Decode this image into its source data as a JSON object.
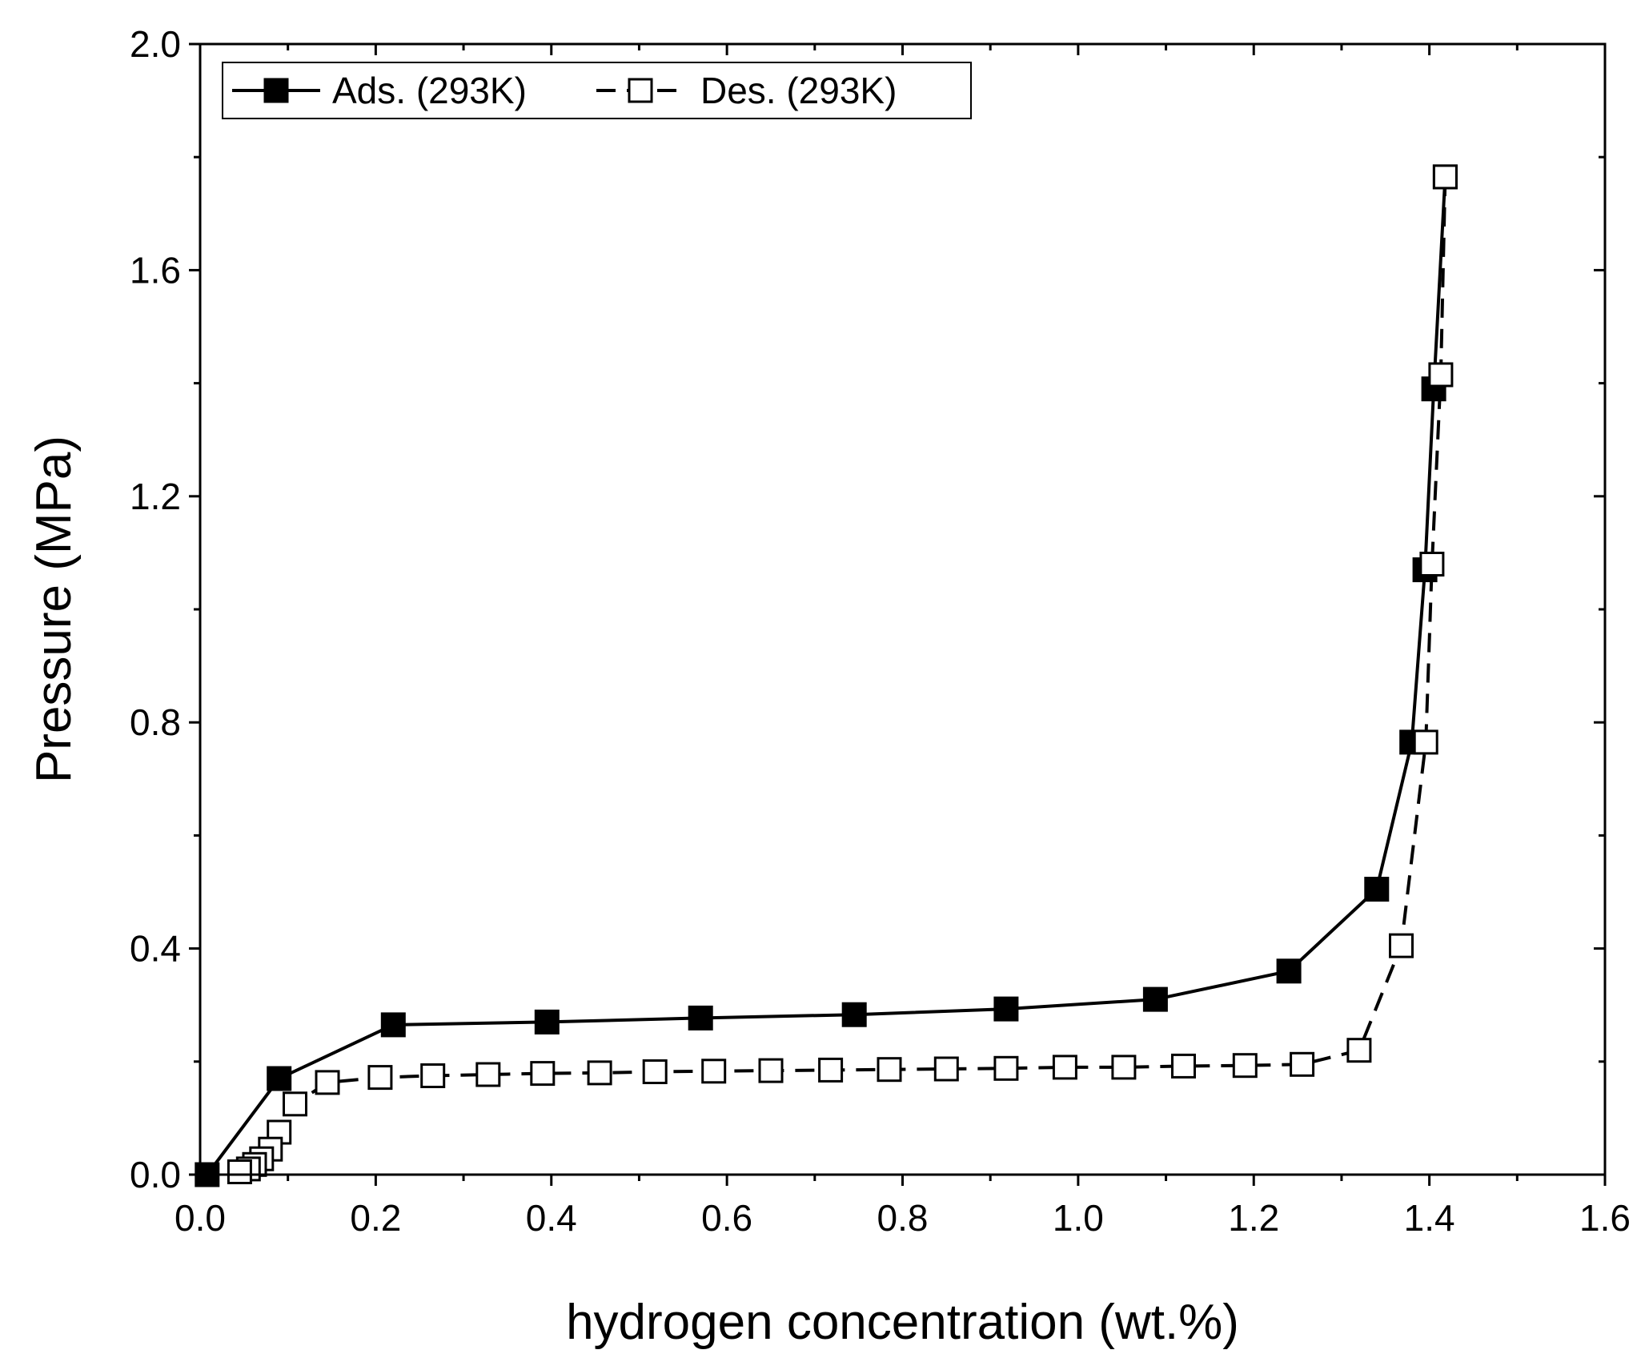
{
  "chart_data": {
    "type": "line",
    "title": "",
    "xlabel": "hydrogen concentration (wt.%)",
    "ylabel": "Pressure (MPa)",
    "xlim": [
      0.0,
      1.6
    ],
    "ylim": [
      0.0,
      2.0
    ],
    "xticks": [
      "0.0",
      "0.2",
      "0.4",
      "0.6",
      "0.8",
      "1.0",
      "1.2",
      "1.4",
      "1.6"
    ],
    "yticks": [
      "0.0",
      "0.4",
      "0.8",
      "1.2",
      "1.6",
      "2.0"
    ],
    "grid": false,
    "legend_position": "top-left",
    "series": [
      {
        "name": "Ads. (293K)",
        "color": "#000000",
        "marker": "filled-square",
        "line_style": "solid",
        "x": [
          0.008,
          0.09,
          0.22,
          0.395,
          0.57,
          0.745,
          0.918,
          1.088,
          1.24,
          1.34,
          1.38,
          1.395,
          1.405,
          1.418
        ],
        "y": [
          0.0,
          0.17,
          0.265,
          0.27,
          0.277,
          0.283,
          0.293,
          0.31,
          0.36,
          0.505,
          0.765,
          1.07,
          1.39,
          1.765
        ]
      },
      {
        "name": "Des. (293K)",
        "color": "#000000",
        "marker": "open-square",
        "line_style": "dashed",
        "x": [
          1.418,
          1.413,
          1.403,
          1.396,
          1.368,
          1.32,
          1.255,
          1.19,
          1.12,
          1.052,
          0.985,
          0.918,
          0.85,
          0.785,
          0.718,
          0.65,
          0.585,
          0.518,
          0.455,
          0.39,
          0.328,
          0.265,
          0.205,
          0.145,
          0.108,
          0.09,
          0.08,
          0.07,
          0.062,
          0.055,
          0.045
        ],
        "y": [
          1.765,
          1.415,
          1.08,
          0.765,
          0.405,
          0.22,
          0.195,
          0.193,
          0.192,
          0.19,
          0.19,
          0.188,
          0.187,
          0.186,
          0.185,
          0.184,
          0.183,
          0.182,
          0.18,
          0.179,
          0.177,
          0.175,
          0.172,
          0.163,
          0.125,
          0.075,
          0.045,
          0.028,
          0.018,
          0.01,
          0.005
        ]
      }
    ]
  }
}
